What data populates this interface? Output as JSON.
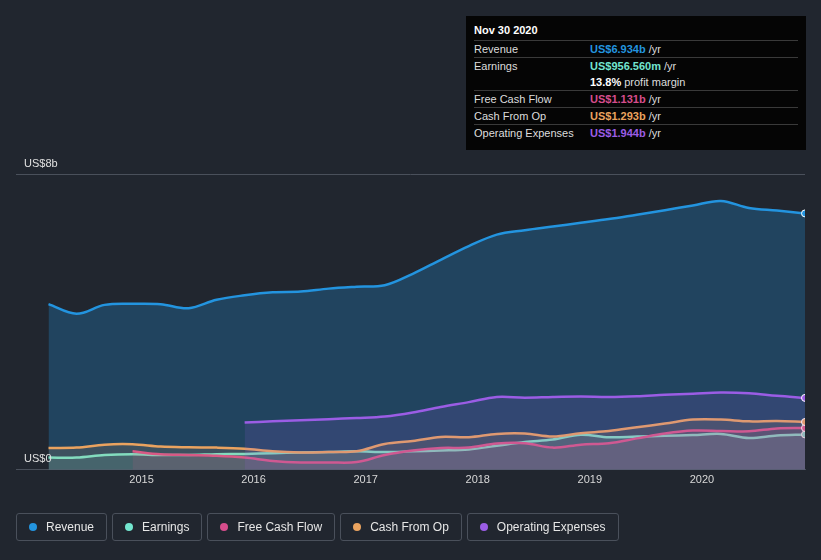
{
  "chart_data": {
    "type": "line",
    "x": [
      2014.17,
      2014.42,
      2014.67,
      2014.92,
      2015.17,
      2015.42,
      2015.67,
      2015.92,
      2016.17,
      2016.42,
      2016.67,
      2016.92,
      2017.17,
      2017.42,
      2017.67,
      2017.92,
      2018.17,
      2018.42,
      2018.67,
      2018.92,
      2019.17,
      2019.42,
      2019.67,
      2019.92,
      2020.17,
      2020.42,
      2020.67,
      2020.92
    ],
    "series": [
      {
        "name": "Revenue",
        "color": "#2394df",
        "type": "area",
        "values": [
          4.48,
          4.22,
          4.46,
          4.49,
          4.48,
          4.37,
          4.6,
          4.72,
          4.8,
          4.82,
          4.9,
          4.95,
          4.99,
          5.3,
          5.68,
          6.05,
          6.36,
          6.48,
          6.58,
          6.68,
          6.78,
          6.9,
          7.02,
          7.15,
          7.27,
          7.08,
          7.01,
          6.934
        ]
      },
      {
        "name": "Earnings",
        "color": "#73e6cf",
        "type": "area",
        "values": [
          0.33,
          0.33,
          0.4,
          0.42,
          0.4,
          0.4,
          0.42,
          0.43,
          0.45,
          0.47,
          0.48,
          0.5,
          0.48,
          0.5,
          0.52,
          0.55,
          0.65,
          0.75,
          0.82,
          0.95,
          0.88,
          0.9,
          0.92,
          0.94,
          0.97,
          0.86,
          0.93,
          0.95656
        ]
      },
      {
        "name": "Free Cash Flow",
        "color": "#d64d8c",
        "type": "area",
        "values": [
          null,
          null,
          null,
          0.5,
          0.42,
          0.4,
          0.38,
          0.33,
          0.24,
          0.2,
          0.2,
          0.21,
          0.4,
          0.52,
          0.59,
          0.6,
          0.71,
          0.72,
          0.6,
          0.68,
          0.72,
          0.85,
          0.98,
          1.06,
          1.05,
          1.04,
          1.12,
          1.131
        ]
      },
      {
        "name": "Cash From Op",
        "color": "#eaa35f",
        "type": "area",
        "values": [
          0.59,
          0.6,
          0.68,
          0.69,
          0.63,
          0.61,
          0.6,
          0.57,
          0.5,
          0.47,
          0.48,
          0.5,
          0.7,
          0.78,
          0.89,
          0.88,
          0.97,
          0.98,
          0.9,
          0.99,
          1.05,
          1.15,
          1.25,
          1.36,
          1.36,
          1.31,
          1.32,
          1.293
        ]
      },
      {
        "name": "Operating Expenses",
        "color": "#9b5de5",
        "type": "area",
        "values": [
          null,
          null,
          null,
          null,
          null,
          null,
          null,
          1.28,
          1.31,
          1.34,
          1.37,
          1.4,
          1.44,
          1.55,
          1.7,
          1.83,
          1.97,
          1.95,
          1.97,
          1.98,
          1.97,
          1.99,
          2.03,
          2.06,
          2.09,
          2.07,
          2.0,
          1.944
        ]
      }
    ],
    "xlim": [
      2013.88,
      2020.92
    ],
    "xticks": [
      2015,
      2016,
      2017,
      2018,
      2019,
      2020
    ],
    "ylim": [
      0,
      8
    ],
    "yticks": [
      {
        "value": 0,
        "label": "US$0"
      },
      {
        "value": 8,
        "label": "US$8b"
      }
    ],
    "grid": true,
    "annotations": {
      "date": "Nov 30 2020",
      "rows": [
        {
          "label": "Revenue",
          "value": "US$6.934b",
          "unit": "/yr"
        },
        {
          "label": "Earnings",
          "value": "US$956.560m",
          "unit": "/yr"
        },
        {
          "value": "13.8%",
          "unit": "profit margin"
        },
        {
          "label": "Free Cash Flow",
          "value": "US$1.131b",
          "unit": "/yr"
        },
        {
          "label": "Cash From Op",
          "value": "US$1.293b",
          "unit": "/yr"
        },
        {
          "label": "Operating Expenses",
          "value": "US$1.944b",
          "unit": "/yr"
        }
      ]
    }
  }
}
